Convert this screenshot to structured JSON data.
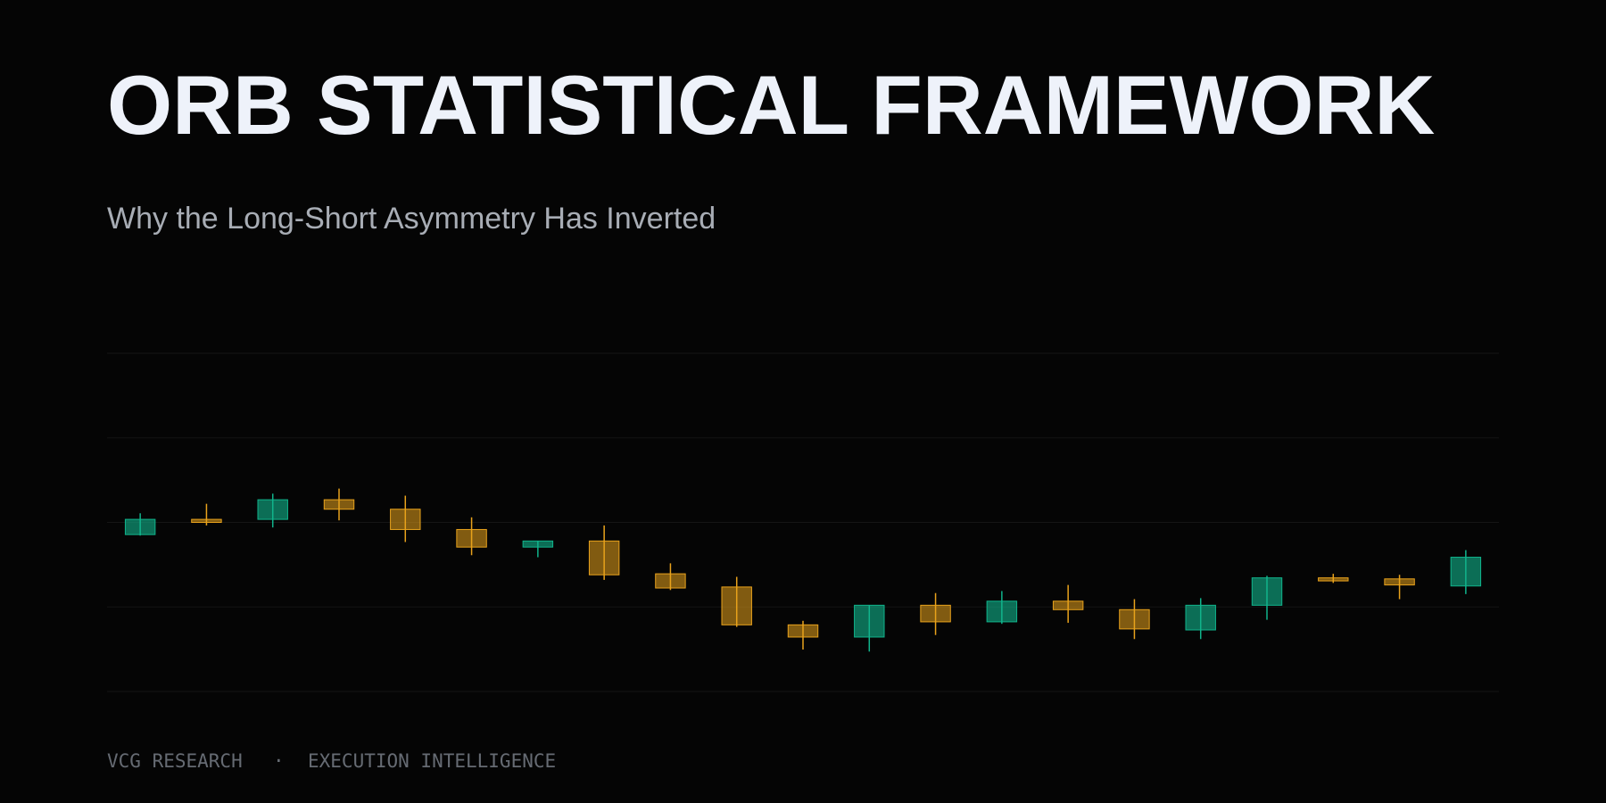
{
  "chart_data": {
    "type": "candlestick",
    "title": "ORB STATISTICAL FRAMEWORK",
    "subtitle": "Why the Long-Short Asymmetry Has Inverted",
    "open": [
      46.4,
      50.9,
      50.9,
      56.7,
      53.9,
      47.9,
      42.7,
      44.5,
      34.8,
      30.9,
      19.7,
      16.1,
      25.5,
      20.6,
      26.7,
      24.2,
      18.2,
      25.5,
      33.6,
      33.3,
      31.2
    ],
    "high": [
      52.7,
      55.5,
      58.5,
      60.0,
      57.9,
      51.5,
      44.5,
      49.1,
      37.9,
      33.9,
      20.9,
      25.5,
      29.1,
      29.7,
      31.5,
      27.3,
      27.6,
      34.2,
      34.8,
      34.5,
      41.8
    ],
    "low": [
      46.1,
      49.1,
      48.5,
      50.6,
      44.2,
      40.3,
      39.7,
      33.0,
      30.0,
      19.1,
      12.4,
      11.8,
      16.7,
      20.0,
      20.3,
      15.5,
      15.5,
      21.2,
      32.1,
      27.3,
      28.8
    ],
    "close": [
      50.9,
      50.0,
      56.7,
      53.9,
      47.9,
      42.7,
      44.5,
      34.5,
      30.6,
      19.7,
      16.1,
      25.5,
      20.6,
      26.7,
      24.2,
      18.5,
      25.5,
      33.6,
      32.7,
      31.5,
      39.7
    ],
    "up_color": "#10b48c",
    "down_color": "#e8a21c",
    "ylim": [
      0,
      100
    ],
    "yticks": [
      0,
      25,
      50,
      75,
      100
    ],
    "grid": true,
    "show_tick_labels": false
  },
  "footer": [
    "VCG RESEARCH",
    "·",
    "EXECUTION INTELLIGENCE"
  ]
}
